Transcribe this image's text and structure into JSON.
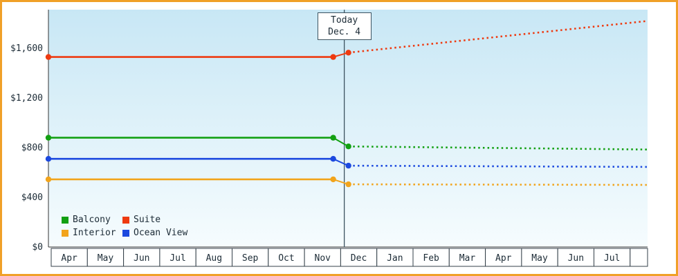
{
  "chart_data": {
    "type": "line",
    "title": "",
    "x_axis": {
      "labels": [
        "Apr",
        "May",
        "Jun",
        "Jul",
        "Aug",
        "Sep",
        "Oct",
        "Nov",
        "Dec",
        "Jan",
        "Feb",
        "Mar",
        "Apr",
        "May",
        "Jun",
        "Jul"
      ]
    },
    "y_axis": {
      "ticks": [
        0,
        400,
        800,
        1200,
        1600
      ],
      "tick_labels": [
        "$0",
        "$400",
        "$800",
        "$1,200",
        "$1,600"
      ],
      "range": [
        0,
        1900
      ]
    },
    "today_marker": {
      "line1": "Today",
      "line2": "Dec. 4",
      "month_index": 8,
      "month_fraction": 0.1
    },
    "line_styles": {
      "history": "solid",
      "forecast": "dotted"
    },
    "series": [
      {
        "name": "Balcony",
        "color": "#12a012",
        "history_value": 880,
        "today_value": 810,
        "forecast_end_value": 785
      },
      {
        "name": "Suite",
        "color": "#ee3a10",
        "history_value": 1530,
        "today_value": 1565,
        "forecast_end_value": 1820
      },
      {
        "name": "Interior",
        "color": "#f2a41b",
        "history_value": 545,
        "today_value": 505,
        "forecast_end_value": 500
      },
      {
        "name": "Ocean View",
        "color": "#1c49df",
        "history_value": 710,
        "today_value": 655,
        "forecast_end_value": 645
      }
    ],
    "legend": [
      "Balcony",
      "Suite",
      "Interior",
      "Ocean View"
    ],
    "colors": {
      "frame_border": "#f0a028",
      "plot_bg_top": "#c8e7f5",
      "plot_bg_bottom": "#f6fcfe",
      "axis": "#333333",
      "today_line": "#3d5360",
      "text": "#1c2b36",
      "cell_border": "#333f48",
      "cell_fill": "#ffffff"
    }
  }
}
